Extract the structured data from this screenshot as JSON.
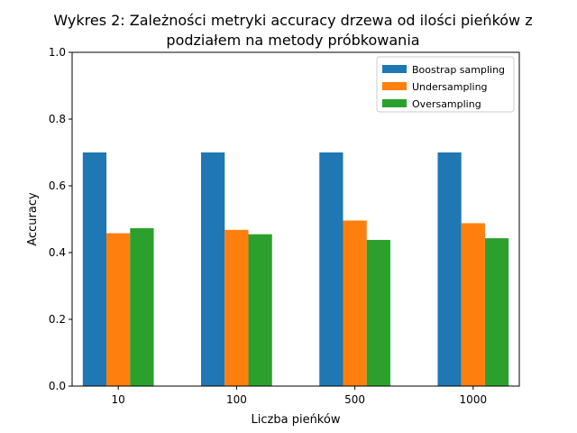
{
  "chart_data": {
    "type": "bar",
    "title_lines": [
      "Wykres 2: Zależności metryki accuracy drzewa od ilości pieńków z",
      "podziałem na metody próbkowania"
    ],
    "xlabel": "Liczba pieńków",
    "ylabel": "Accuracy",
    "categories": [
      "10",
      "100",
      "500",
      "1000"
    ],
    "ylim": [
      0,
      1.0
    ],
    "yticks": [
      "0.0",
      "0.2",
      "0.4",
      "0.6",
      "0.8",
      "1.0"
    ],
    "ytick_values": [
      0,
      0.2,
      0.4,
      0.6,
      0.8,
      1.0
    ],
    "grid": false,
    "legend_position": "top-right",
    "series": [
      {
        "name": "Boostrap sampling",
        "color": "#1f77b4",
        "values": [
          0.7,
          0.7,
          0.7,
          0.7
        ]
      },
      {
        "name": "Undersampling",
        "color": "#ff7f0e",
        "values": [
          0.458,
          0.468,
          0.496,
          0.488
        ]
      },
      {
        "name": "Oversampling",
        "color": "#2ca02c",
        "values": [
          0.473,
          0.455,
          0.438,
          0.443
        ]
      }
    ]
  }
}
